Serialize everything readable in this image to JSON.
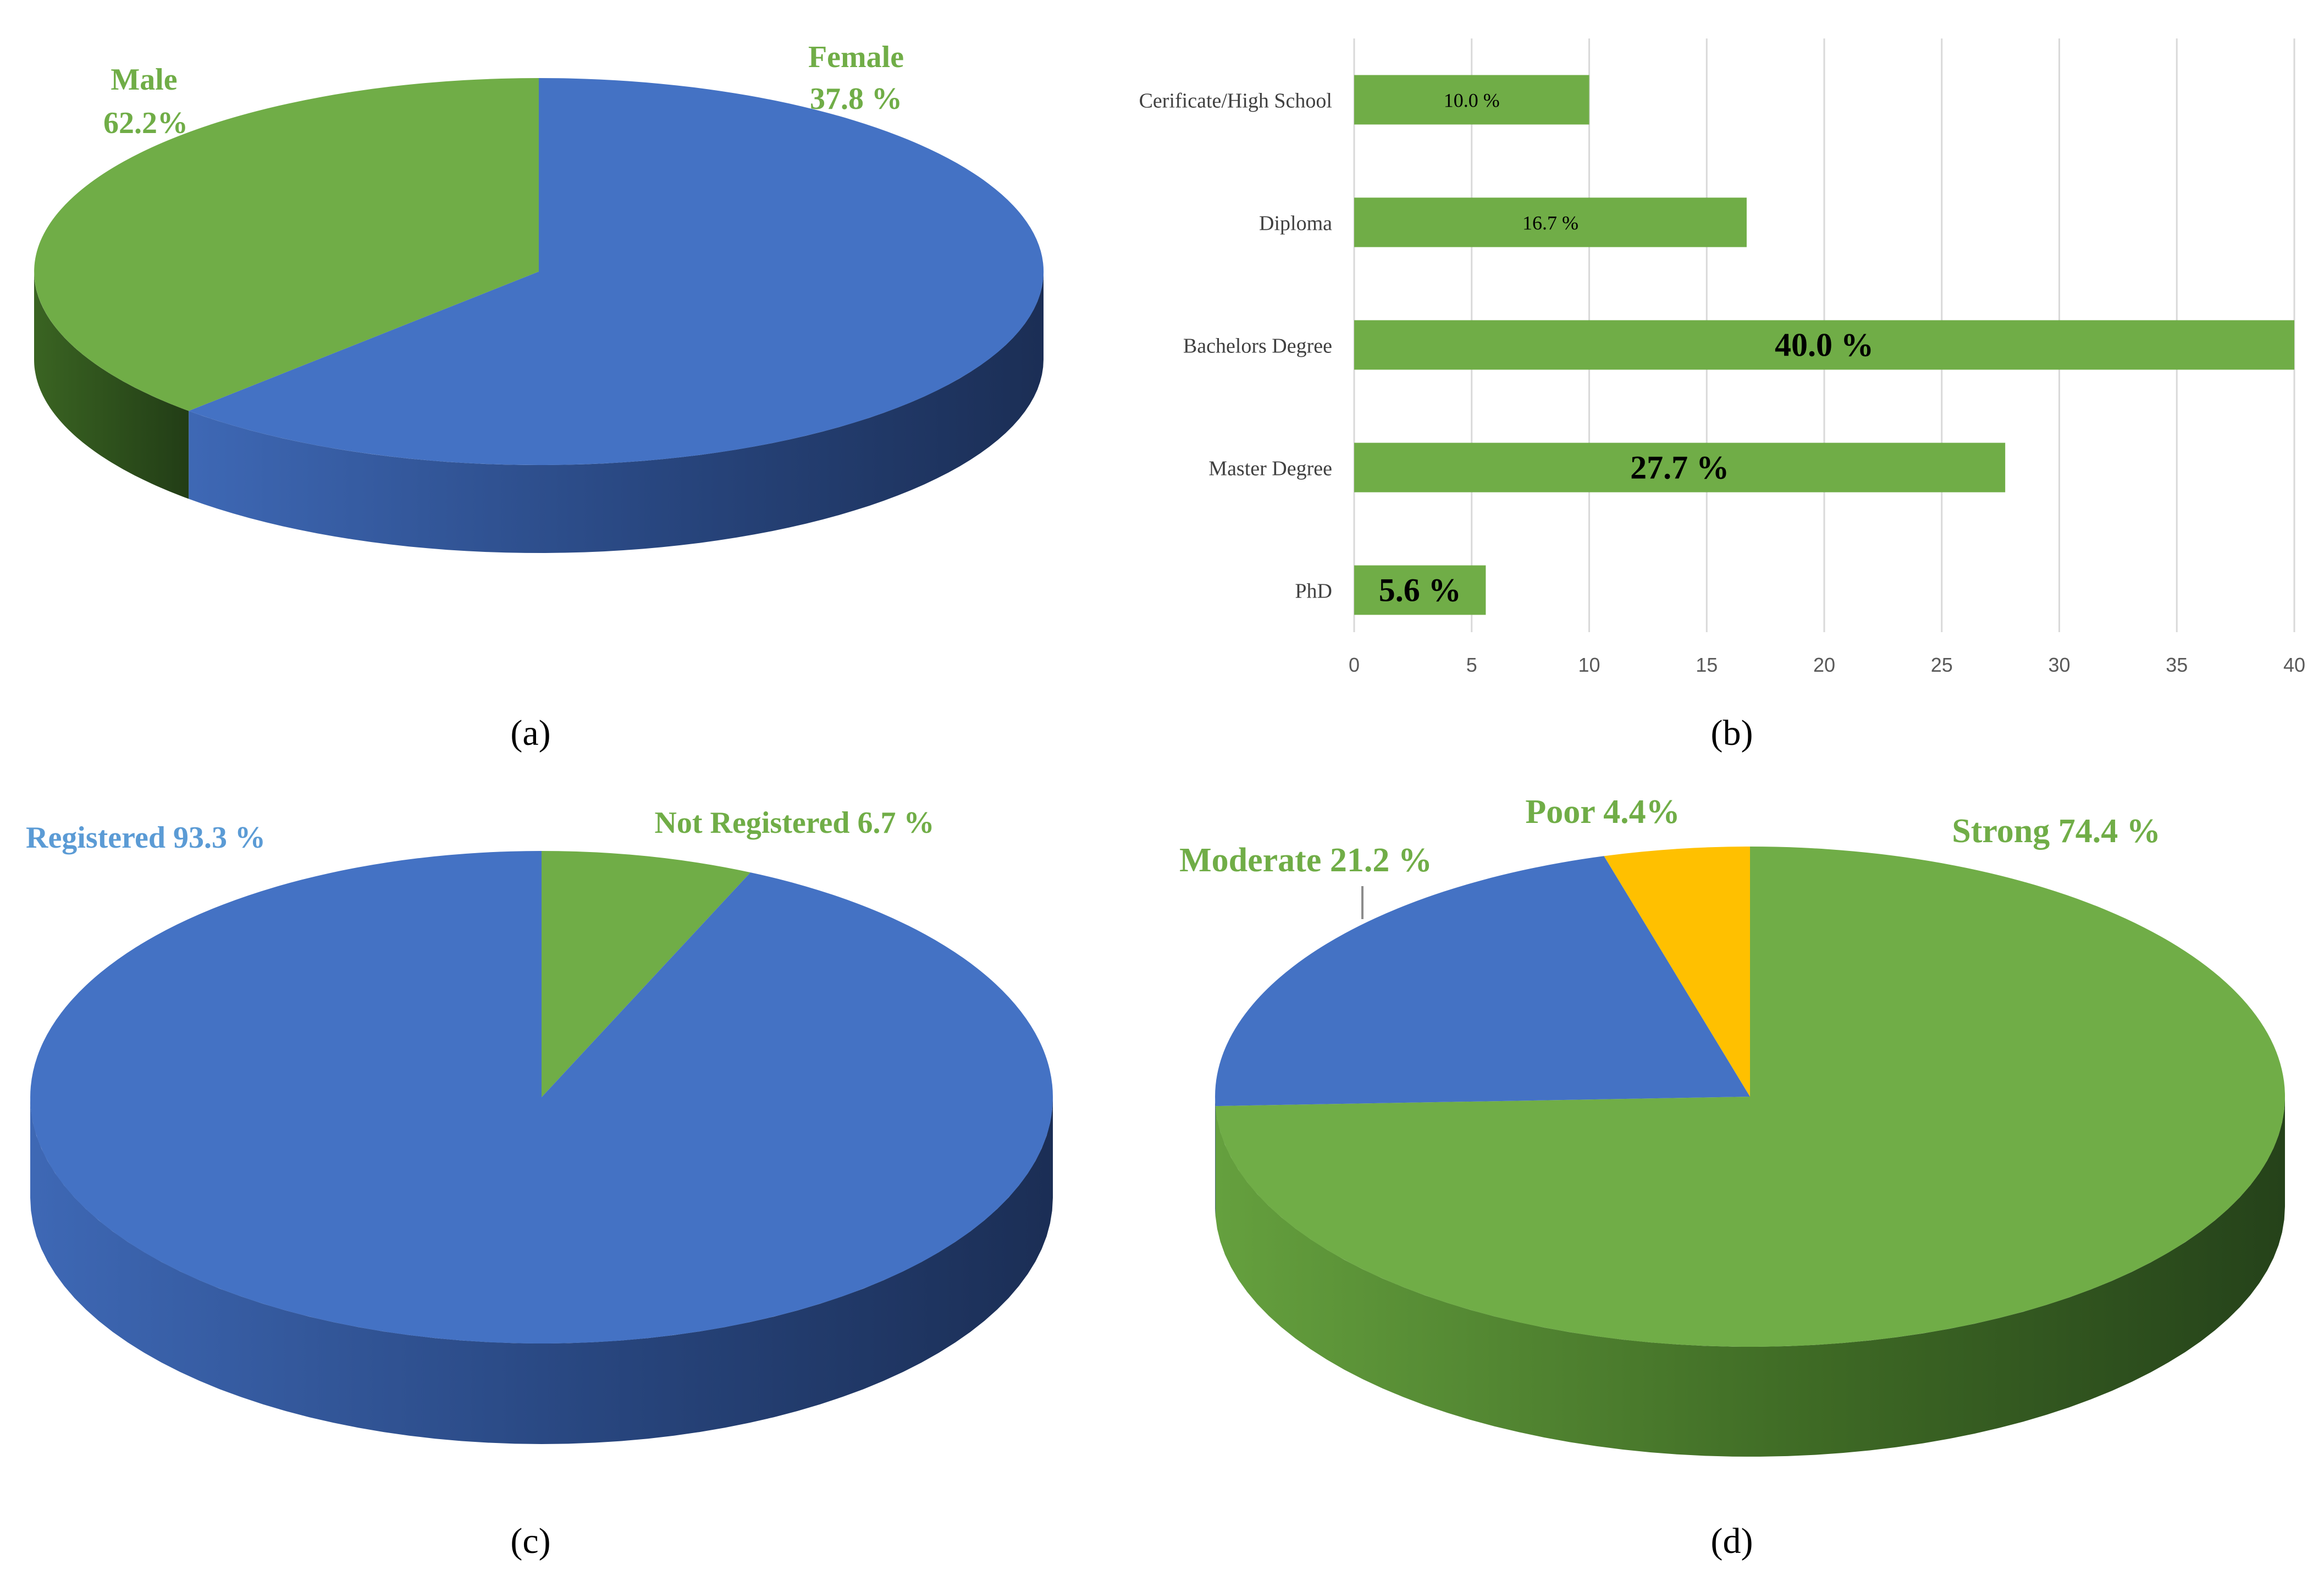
{
  "colors": {
    "blue": "#4472C4",
    "green": "#70AD47",
    "gold": "#FFC000",
    "light_blue_label": "#5B9BD5",
    "grid": "#D9D9D9",
    "axis_text": "#595959",
    "dark_text": "#000000"
  },
  "chart_data": [
    {
      "type": "pie",
      "panel_label": "(a)",
      "style": "3d",
      "slices": [
        {
          "name": "Male",
          "value": 62.2,
          "label_value": "62.2%",
          "color": "#4472C4"
        },
        {
          "name": "Female",
          "value": 37.8,
          "label_value": "37.8 %",
          "color": "#70AD47"
        }
      ]
    },
    {
      "type": "bar",
      "orientation": "horizontal",
      "panel_label": "(b)",
      "categories": [
        "Cerificate/High School",
        "Diploma",
        "Bachelors Degree",
        "Master Degree",
        "PhD"
      ],
      "values": [
        10.0,
        16.7,
        40.0,
        27.7,
        5.6
      ],
      "data_labels": [
        "10.0 %",
        "16.7 %",
        "40.0 %",
        "27.7 %",
        "5.6 %"
      ],
      "xticks": [
        "0",
        "5",
        "10",
        "15",
        "20",
        "25",
        "30",
        "35",
        "40"
      ],
      "xlim": [
        0,
        40
      ],
      "grid": true,
      "bar_color": "#70AD47"
    },
    {
      "type": "pie",
      "panel_label": "(c)",
      "style": "3d",
      "slices": [
        {
          "name": "Not Registered",
          "value": 6.7,
          "label": "Not Registered 6.7 %",
          "color": "#70AD47"
        },
        {
          "name": "Registered",
          "value": 93.3,
          "label": "Registered 93.3 %",
          "color": "#4472C4"
        }
      ]
    },
    {
      "type": "pie",
      "panel_label": "(d)",
      "style": "3d",
      "slices": [
        {
          "name": "Strong",
          "value": 74.4,
          "label": "Strong 74.4 %",
          "color": "#70AD47"
        },
        {
          "name": "Moderate",
          "value": 21.2,
          "label": "Moderate 21.2 %",
          "color": "#4472C4"
        },
        {
          "name": "Poor",
          "value": 4.4,
          "label": "Poor 4.4%",
          "color": "#FFC000"
        }
      ]
    }
  ]
}
